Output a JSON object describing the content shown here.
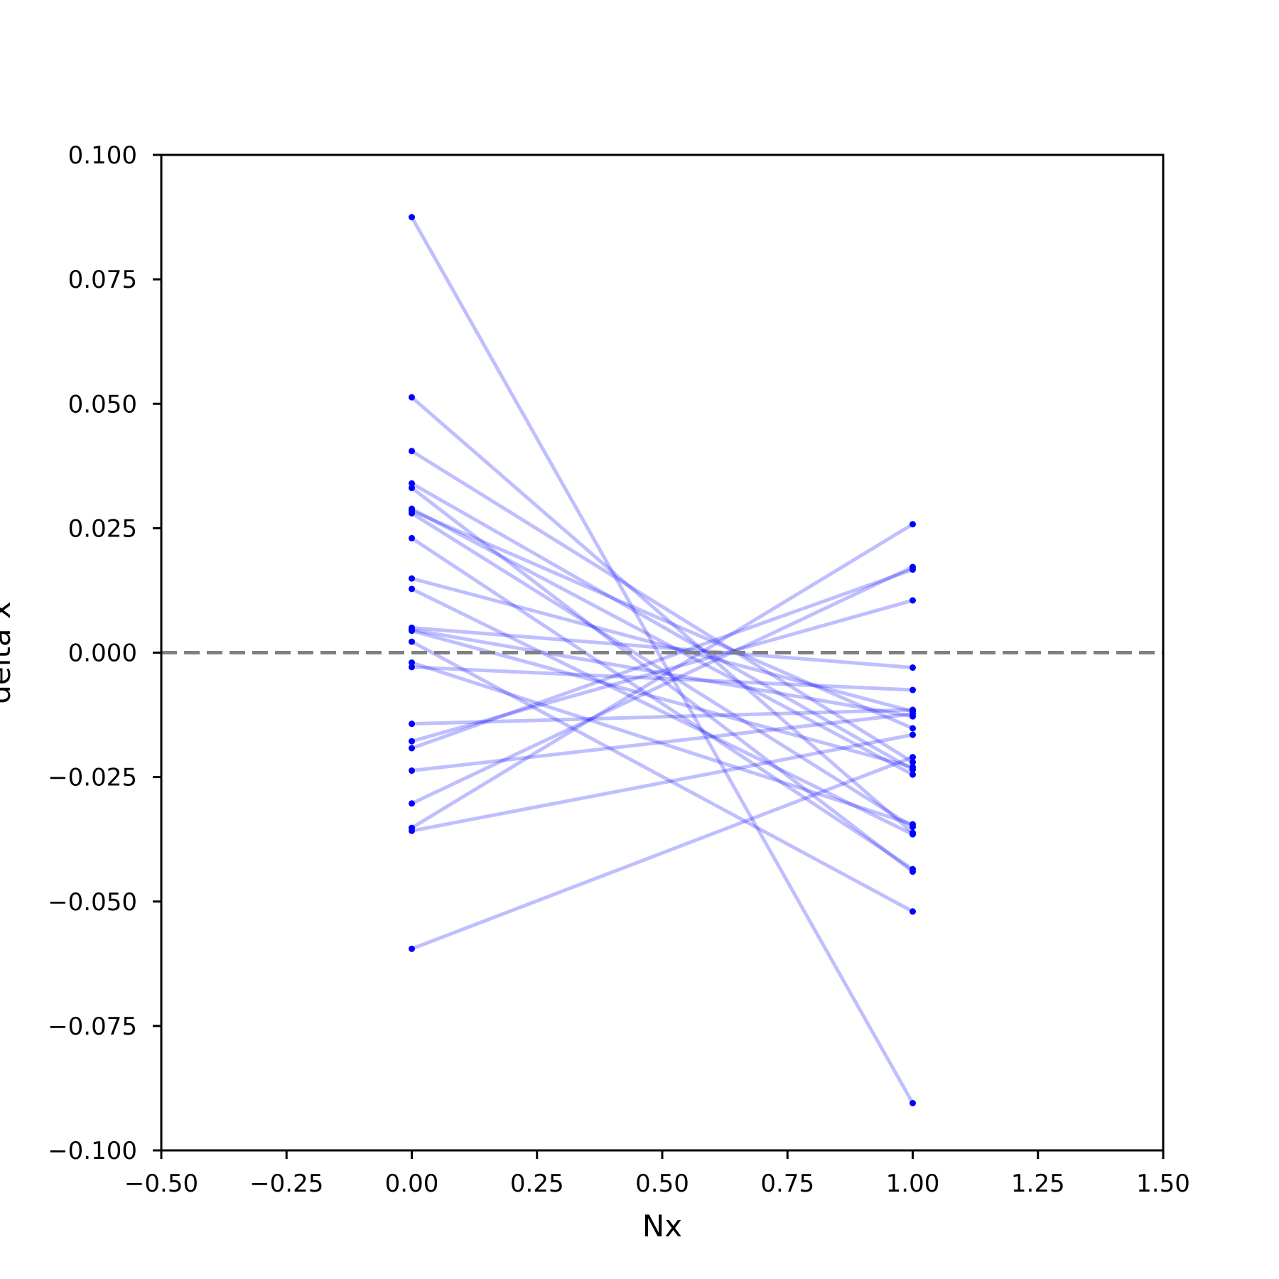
{
  "chart_data": {
    "type": "line",
    "title": "",
    "xlabel": "Nx",
    "ylabel": "delta x",
    "xlim": [
      -0.5,
      1.5
    ],
    "ylim": [
      -0.1,
      0.1
    ],
    "xticks": [
      -0.5,
      -0.25,
      0.0,
      0.25,
      0.5,
      0.75,
      1.0,
      1.25,
      1.5
    ],
    "xtick_labels": [
      "−0.50",
      "−0.25",
      "0.00",
      "0.25",
      "0.50",
      "0.75",
      "1.00",
      "1.25",
      "1.50"
    ],
    "yticks": [
      0.1,
      0.075,
      0.05,
      0.025,
      0.0,
      -0.025,
      -0.05,
      -0.075,
      -0.1
    ],
    "ytick_labels": [
      "0.100",
      "0.075",
      "0.050",
      "0.025",
      "0.000",
      "−0.025",
      "−0.050",
      "−0.075",
      "−0.100"
    ],
    "grid": false,
    "reference_line": {
      "y": 0.0,
      "style": "dashed",
      "color": "#808080"
    },
    "line_color": "#0000ff",
    "line_alpha": 0.25,
    "point_color": "#0000ff",
    "x": [
      0,
      1
    ],
    "pairs": [
      [
        0.0875,
        -0.0905
      ],
      [
        0.0513,
        -0.0362
      ],
      [
        0.0405,
        -0.022
      ],
      [
        0.034,
        -0.0235
      ],
      [
        0.0331,
        -0.044
      ],
      [
        0.0289,
        -0.0245
      ],
      [
        0.0285,
        -0.0152
      ],
      [
        0.028,
        -0.035
      ],
      [
        0.023,
        -0.0435
      ],
      [
        0.0149,
        -0.0118
      ],
      [
        0.0128,
        -0.0365
      ],
      [
        0.005,
        -0.003
      ],
      [
        0.0046,
        -0.0128
      ],
      [
        0.0044,
        -0.023
      ],
      [
        0.0022,
        -0.052
      ],
      [
        -0.002,
        -0.0345
      ],
      [
        -0.0029,
        -0.0075
      ],
      [
        -0.0143,
        -0.0115
      ],
      [
        -0.0178,
        0.0105
      ],
      [
        -0.0192,
        0.0167
      ],
      [
        -0.0237,
        -0.0123
      ],
      [
        -0.0303,
        0.0172
      ],
      [
        -0.0352,
        0.0258
      ],
      [
        -0.0358,
        -0.0165
      ],
      [
        -0.0595,
        -0.021
      ]
    ]
  }
}
